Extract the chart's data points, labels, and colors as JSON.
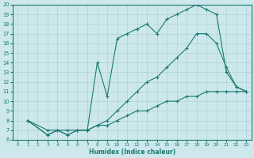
{
  "xlabel": "Humidex (Indice chaleur)",
  "bg_color": "#cce8ec",
  "line_color": "#1a7a6e",
  "grid_color": "#aacccc",
  "xlim": [
    -0.5,
    23.5
  ],
  "ylim": [
    6,
    20
  ],
  "xticks": [
    0,
    1,
    2,
    3,
    4,
    5,
    6,
    7,
    8,
    9,
    10,
    11,
    12,
    13,
    14,
    15,
    16,
    17,
    18,
    19,
    20,
    21,
    22,
    23
  ],
  "yticks": [
    6,
    7,
    8,
    9,
    10,
    11,
    12,
    13,
    14,
    15,
    16,
    17,
    18,
    19,
    20
  ],
  "curve1_x": [
    1,
    3,
    4,
    5,
    6,
    7,
    8,
    9,
    10,
    11,
    12,
    13,
    14,
    15,
    16,
    17,
    18,
    19,
    20,
    21,
    22,
    23
  ],
  "curve1_y": [
    8,
    7,
    7,
    6.5,
    7,
    7,
    14,
    10.5,
    16.5,
    17,
    17.5,
    18,
    17,
    18.5,
    19,
    19.5,
    20,
    19.5,
    19,
    13,
    11.5,
    11
  ],
  "curve2_x": [
    1,
    3,
    4,
    5,
    6,
    7,
    8,
    9,
    10,
    11,
    12,
    13,
    14,
    15,
    16,
    17,
    18,
    19,
    20,
    21,
    22,
    23
  ],
  "curve2_y": [
    8,
    6.5,
    7,
    6.5,
    7,
    7,
    7.5,
    8,
    9,
    10,
    11,
    12,
    12.5,
    13.5,
    14.5,
    15.5,
    17,
    17,
    16,
    13.5,
    11.5,
    11
  ],
  "curve3_x": [
    1,
    3,
    4,
    5,
    6,
    7,
    8,
    9,
    10,
    11,
    12,
    13,
    14,
    15,
    16,
    17,
    18,
    19,
    20,
    21,
    22,
    23
  ],
  "curve3_y": [
    8,
    6.5,
    7,
    7,
    7,
    7,
    7.5,
    7.5,
    8,
    8.5,
    9,
    9,
    9.5,
    10,
    10,
    10.5,
    10.5,
    11,
    11,
    11,
    11,
    11
  ]
}
